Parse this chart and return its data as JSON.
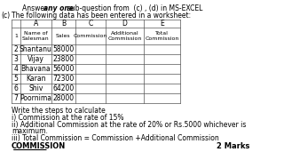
{
  "header_text": "Answer any one  sub-question from  (c) , (d) in MS-EXCEL",
  "subheader": "The following data has been entered in a worksheet:",
  "label_c": "(c)",
  "columns": [
    "",
    "A",
    "B",
    "C",
    "D",
    "E"
  ],
  "row1": [
    "1",
    "Name of\nSalesman",
    "Sales",
    "Commission",
    "Additional\nCommission",
    "Total\nCommission"
  ],
  "rows": [
    [
      "2",
      "Shantanu",
      "58000",
      "",
      "",
      ""
    ],
    [
      "3",
      "Vijay",
      "23800",
      "",
      "",
      ""
    ],
    [
      "4",
      "Bhavana",
      "56000",
      "",
      "",
      ""
    ],
    [
      "5",
      "Karan",
      "72300",
      "",
      "",
      ""
    ],
    [
      "6",
      "Shiv",
      "64200",
      "",
      "",
      ""
    ],
    [
      "7",
      "Poornima",
      "28000",
      "",
      "",
      ""
    ]
  ],
  "notes": [
    "Write the steps to calculate",
    "i) Commission at the rate of 15%",
    "ii) Additional Commission at the rate of 20% or Rs.5000 whichever is\nmaximum.",
    "iii) Total Commission = Commission +Additional Commission"
  ],
  "bold_text": "COMMISSION",
  "marks": "2 Marks",
  "bg_color": "#ffffff",
  "table_line_color": "#555555",
  "text_color": "#000000",
  "font_size": 5.5,
  "small_font": 5.0
}
